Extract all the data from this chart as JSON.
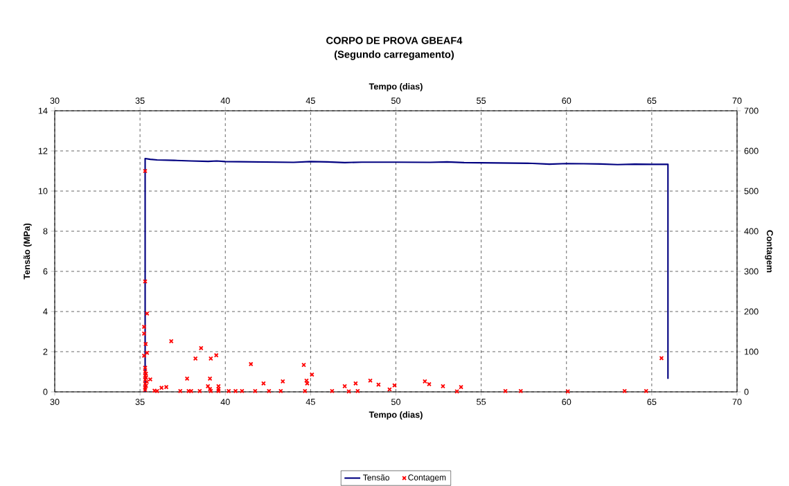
{
  "chart_data": {
    "type": "line",
    "title": "CORPO DE PROVA GBEAF4",
    "subtitle": "(Segundo carregamento)",
    "xlabel": "Tempo (dias)",
    "x2label": "Tempo (dias)",
    "ylabel": "Tensão (MPa)",
    "y2label": "Contagem",
    "xlim": [
      30,
      70
    ],
    "xticks": [
      30,
      35,
      40,
      45,
      50,
      55,
      60,
      65,
      70
    ],
    "x2lim": [
      30,
      70
    ],
    "x2ticks": [
      30,
      35,
      40,
      45,
      50,
      55,
      60,
      65,
      70
    ],
    "ylim": [
      0,
      14
    ],
    "yticks": [
      0,
      2,
      4,
      6,
      8,
      10,
      12,
      14
    ],
    "y2lim": [
      0,
      700
    ],
    "y2ticks": [
      0,
      100,
      200,
      300,
      400,
      500,
      600,
      700
    ],
    "grid": true,
    "legend": "bottom",
    "series": [
      {
        "name": "Tensão",
        "color": "#000080",
        "marker": "none",
        "line_style": "solid",
        "x": [
          35.3,
          35.3,
          35.6,
          36,
          37,
          38,
          39,
          39.5,
          40,
          42,
          44,
          45,
          46,
          47,
          48,
          50,
          52,
          53,
          54,
          56,
          58,
          59,
          60,
          61,
          62,
          63,
          64,
          65,
          65.95,
          65.95
        ],
        "values": [
          0,
          11.62,
          11.58,
          11.55,
          11.53,
          11.5,
          11.48,
          11.5,
          11.47,
          11.45,
          11.43,
          11.47,
          11.45,
          11.42,
          11.44,
          11.44,
          11.43,
          11.45,
          11.42,
          11.4,
          11.38,
          11.34,
          11.37,
          11.36,
          11.35,
          11.32,
          11.34,
          11.33,
          11.33,
          0.65
        ]
      },
      {
        "name": "Contagem",
        "type": "scatter",
        "axis": "y2",
        "color": "#ff0000",
        "marker": "cross",
        "x": [
          35.3,
          35.3,
          35.41,
          35.24,
          35.24,
          35.33,
          35.41,
          35.24,
          35.3,
          35.3,
          35.35,
          35.3,
          35.35,
          35.3,
          35.4,
          35.3,
          35.35,
          35.3,
          35.3,
          35.6,
          35.85,
          36.0,
          36.26,
          36.54,
          36.83,
          37.36,
          37.76,
          37.85,
          38.0,
          38.25,
          38.5,
          38.58,
          38.98,
          39.1,
          39.1,
          39.15,
          39.15,
          39.47,
          39.6,
          39.6,
          39.6,
          40.2,
          40.6,
          40.98,
          41.5,
          41.75,
          42.24,
          42.56,
          43.25,
          43.37,
          44.6,
          44.67,
          44.76,
          44.8,
          45.08,
          46.26,
          47.0,
          47.24,
          47.64,
          47.76,
          48.5,
          48.98,
          49.63,
          49.92,
          51.7,
          51.95,
          52.76,
          53.58,
          53.82,
          56.42,
          57.32,
          60.08,
          63.41,
          64.67,
          65.57
        ],
        "values": [
          550,
          275,
          195,
          162,
          145,
          119,
          97,
          90,
          60,
          50,
          45,
          40,
          35,
          30,
          25,
          20,
          15,
          10,
          5,
          31,
          3,
          2,
          10,
          12,
          126,
          2,
          33,
          2,
          2,
          83,
          2,
          109,
          14,
          33,
          7,
          2,
          83,
          91,
          14,
          7,
          2,
          2,
          2,
          2,
          69,
          2,
          21,
          2,
          2,
          26,
          67,
          2,
          28,
          21,
          43,
          2,
          14,
          1,
          21,
          2,
          28,
          18,
          6,
          16,
          26,
          19,
          14,
          1,
          12,
          2,
          2,
          1,
          2,
          2,
          84
        ]
      }
    ]
  }
}
